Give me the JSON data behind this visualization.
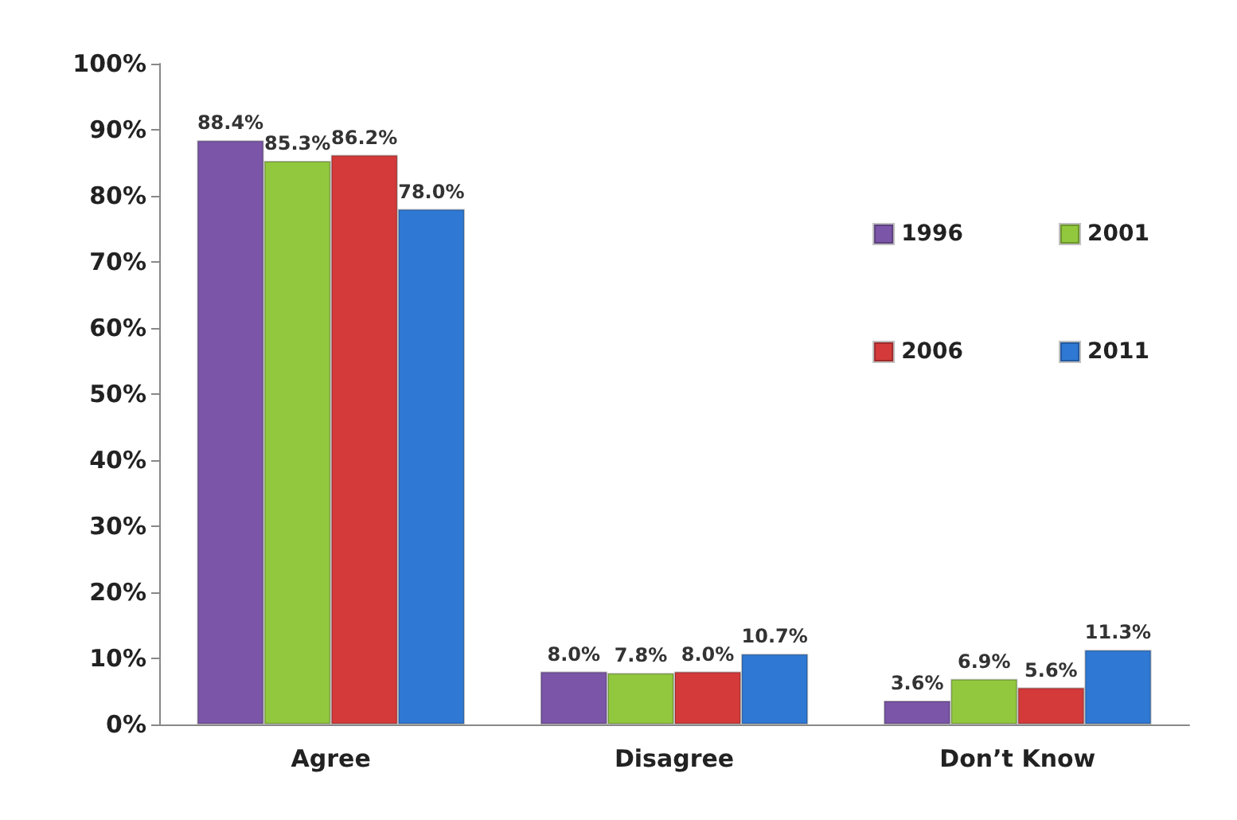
{
  "chart_data": {
    "type": "bar",
    "categories": [
      "Agree",
      "Disagree",
      "Don’t Know"
    ],
    "series": [
      {
        "name": "1996",
        "color": "#7b55a8",
        "values": [
          88.4,
          8.0,
          3.6
        ],
        "value_labels": [
          "88.4%",
          "8.0%",
          "3.6%"
        ]
      },
      {
        "name": "2001",
        "color": "#92c83e",
        "values": [
          85.3,
          7.8,
          6.9
        ],
        "value_labels": [
          "85.3%",
          "7.8%",
          "6.9%"
        ]
      },
      {
        "name": "2006",
        "color": "#d43a3a",
        "values": [
          86.2,
          8.0,
          5.6
        ],
        "value_labels": [
          "86.2%",
          "8.0%",
          "5.6%"
        ]
      },
      {
        "name": "2011",
        "color": "#2f78d4",
        "values": [
          78.0,
          10.7,
          11.3
        ],
        "value_labels": [
          "78.0%",
          "10.7%",
          "11.3%"
        ]
      }
    ],
    "ylim": [
      0,
      100
    ],
    "yticks": [
      {
        "value": 0,
        "label": "0%"
      },
      {
        "value": 10,
        "label": "10%"
      },
      {
        "value": 20,
        "label": "20%"
      },
      {
        "value": 30,
        "label": "30%"
      },
      {
        "value": 40,
        "label": "40%"
      },
      {
        "value": 50,
        "label": "50%"
      },
      {
        "value": 60,
        "label": "60%"
      },
      {
        "value": 70,
        "label": "70%"
      },
      {
        "value": 80,
        "label": "80%"
      },
      {
        "value": 90,
        "label": "90%"
      },
      {
        "value": 100,
        "label": "100%"
      }
    ],
    "grid": false,
    "legend": "top right"
  }
}
